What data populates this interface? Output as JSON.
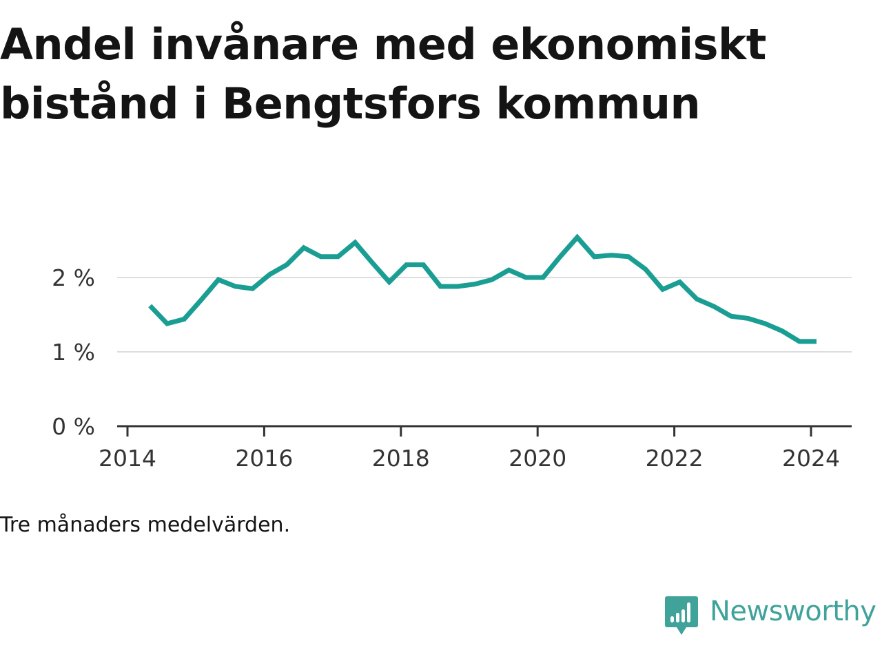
{
  "chart_data": {
    "type": "line",
    "title": "Andel invånare med ekonomiskt bistånd i Bengtsfors kommun",
    "note": "Tre månaders medelvärden.",
    "xlabel": "",
    "ylabel": "",
    "x_ticks": [
      "2014",
      "2016",
      "2018",
      "2020",
      "2022",
      "2024"
    ],
    "y_ticks": [
      "0 %",
      "1 %",
      "2 %"
    ],
    "ylim": [
      0,
      3
    ],
    "grid": true,
    "line_color": "#1a9e93",
    "x": [
      2014.33,
      2014.58,
      2014.83,
      2015.08,
      2015.33,
      2015.58,
      2015.83,
      2016.08,
      2016.33,
      2016.58,
      2016.83,
      2017.08,
      2017.33,
      2017.58,
      2017.83,
      2018.08,
      2018.33,
      2018.58,
      2018.83,
      2019.08,
      2019.33,
      2019.58,
      2019.83,
      2020.08,
      2020.33,
      2020.58,
      2020.83,
      2021.08,
      2021.33,
      2021.58,
      2021.83,
      2022.08,
      2022.33,
      2022.58,
      2022.83,
      2023.08,
      2023.33,
      2023.58,
      2023.83,
      2024.08
    ],
    "values": [
      1.62,
      1.38,
      1.44,
      1.7,
      1.97,
      1.88,
      1.85,
      2.04,
      2.17,
      2.4,
      2.28,
      2.28,
      2.47,
      2.2,
      1.94,
      2.17,
      2.17,
      1.88,
      1.88,
      1.91,
      1.97,
      2.1,
      2.0,
      2.0,
      2.28,
      2.54,
      2.28,
      2.3,
      2.28,
      2.11,
      1.84,
      1.94,
      1.71,
      1.61,
      1.48,
      1.45,
      1.38,
      1.28,
      1.14,
      1.14
    ]
  },
  "brand": {
    "name": "Newsworthy",
    "color": "#3fa39a"
  }
}
